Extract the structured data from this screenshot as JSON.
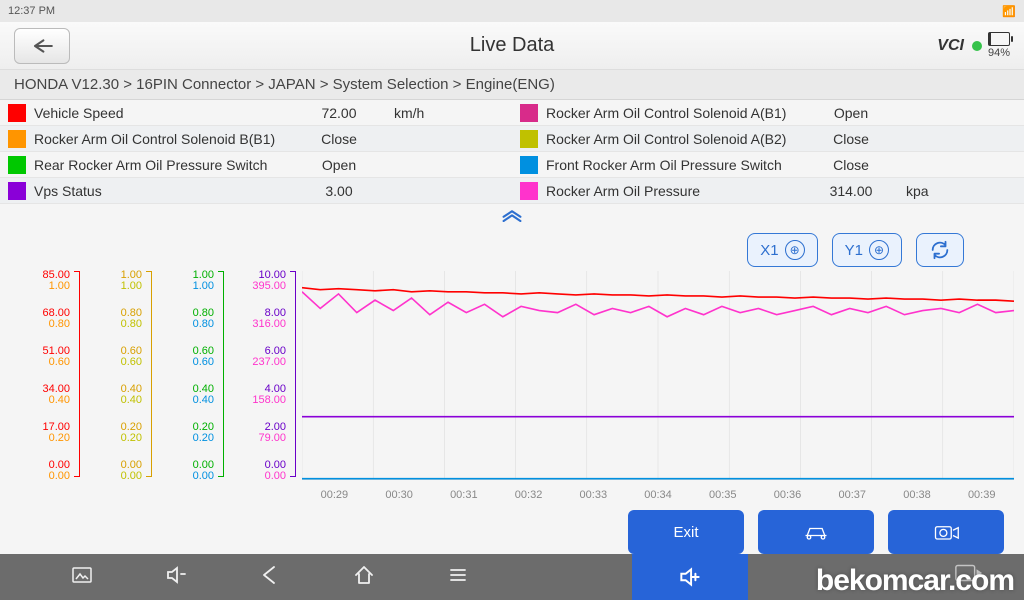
{
  "status": {
    "time": "12:37 PM",
    "battery_pct": "94%"
  },
  "header": {
    "title": "Live Data",
    "vci_label": "VCI"
  },
  "breadcrumb": "HONDA V12.30 > 16PIN Connector  > JAPAN  > System Selection  > Engine(ENG)",
  "params": [
    {
      "color": "#ff0000",
      "name": "Vehicle Speed",
      "value": "72.00",
      "unit": "km/h"
    },
    {
      "color": "#d82b8a",
      "name": "Rocker Arm Oil Control Solenoid A(B1)",
      "value": "Open",
      "unit": ""
    },
    {
      "color": "#ff9500",
      "name": "Rocker Arm Oil Control Solenoid B(B1)",
      "value": "Close",
      "unit": ""
    },
    {
      "color": "#c0c100",
      "name": "Rocker Arm Oil Control Solenoid A(B2)",
      "value": "Close",
      "unit": ""
    },
    {
      "color": "#00c800",
      "name": "Rear Rocker Arm Oil Pressure Switch",
      "value": "Open",
      "unit": ""
    },
    {
      "color": "#0090e0",
      "name": "Front Rocker Arm Oil Pressure Switch",
      "value": "Close",
      "unit": ""
    },
    {
      "color": "#8a00d8",
      "name": "Vps Status",
      "value": "3.00",
      "unit": ""
    },
    {
      "color": "#ff33cc",
      "name": "Rocker Arm Oil Pressure",
      "value": "314.00",
      "unit": "kpa"
    }
  ],
  "controls": {
    "x_label": "X1",
    "y_label": "Y1"
  },
  "chart": {
    "background_color": "#ffffff",
    "grid_color": "#d8d8d8",
    "xticks": [
      "00:29",
      "00:30",
      "00:31",
      "00:32",
      "00:33",
      "00:34",
      "00:35",
      "00:36",
      "00:37",
      "00:38",
      "00:39"
    ],
    "y_height_units": 10,
    "axes": [
      {
        "color": "#ff0000",
        "pairs": [
          [
            "85.00",
            "1.00"
          ],
          [
            "68.00",
            "0.80"
          ],
          [
            "51.00",
            "0.60"
          ],
          [
            "34.00",
            "0.40"
          ],
          [
            "17.00",
            "0.20"
          ],
          [
            "0.00",
            "0.00"
          ]
        ]
      },
      {
        "color": "#d8a000",
        "pairs": [
          [
            "1.00",
            "1.00"
          ],
          [
            "0.80",
            "0.80"
          ],
          [
            "0.60",
            "0.60"
          ],
          [
            "0.40",
            "0.40"
          ],
          [
            "0.20",
            "0.20"
          ],
          [
            "0.00",
            "0.00"
          ]
        ]
      },
      {
        "color": "#00b000",
        "pairs": [
          [
            "1.00",
            "1.00"
          ],
          [
            "0.80",
            "0.80"
          ],
          [
            "0.60",
            "0.60"
          ],
          [
            "0.40",
            "0.40"
          ],
          [
            "0.20",
            "0.20"
          ],
          [
            "0.00",
            "0.00"
          ]
        ]
      },
      {
        "color": "#6a00c8",
        "pairs": [
          [
            "10.00",
            "395.00"
          ],
          [
            "8.00",
            "316.00"
          ],
          [
            "6.00",
            "237.00"
          ],
          [
            "4.00",
            "158.00"
          ],
          [
            "2.00",
            "79.00"
          ],
          [
            "0.00",
            "0.00"
          ]
        ]
      }
    ],
    "axes_secondary_colors": [
      "#ff9500",
      "#c0c100",
      "#0090e0",
      "#ff33cc"
    ],
    "series": [
      {
        "color": "#ff0000",
        "width": 1.5,
        "points": [
          9.2,
          9.1,
          9.15,
          9.1,
          9.05,
          9.1,
          9.0,
          9.05,
          9.0,
          9.0,
          8.95,
          8.95,
          8.9,
          8.95,
          8.9,
          8.85,
          8.9,
          8.85,
          8.85,
          8.8,
          8.85,
          8.8,
          8.8,
          8.75,
          8.8,
          8.75,
          8.75,
          8.7,
          8.75,
          8.7,
          8.7,
          8.65,
          8.7,
          8.65,
          8.65,
          8.6,
          8.65,
          8.6,
          8.6,
          8.55
        ]
      },
      {
        "color": "#ff33cc",
        "width": 1.5,
        "points": [
          9.0,
          8.2,
          8.9,
          8.0,
          8.6,
          8.1,
          8.7,
          7.9,
          8.5,
          8.0,
          8.4,
          7.8,
          8.3,
          8.1,
          8.0,
          8.4,
          7.9,
          8.2,
          8.0,
          8.3,
          7.8,
          8.2,
          7.9,
          8.3,
          8.0,
          8.2,
          7.9,
          8.1,
          8.3,
          7.9,
          8.2,
          8.0,
          8.3,
          7.9,
          8.1,
          8.2,
          8.0,
          8.4,
          8.0,
          8.1
        ]
      },
      {
        "color": "#8a00d8",
        "width": 1.5,
        "points": [
          3.0,
          3.0,
          3.0,
          3.0,
          3.0,
          3.0,
          3.0,
          3.0,
          3.0,
          3.0,
          3.0,
          3.0,
          3.0,
          3.0,
          3.0,
          3.0,
          3.0,
          3.0,
          3.0,
          3.0,
          3.0,
          3.0,
          3.0,
          3.0,
          3.0,
          3.0,
          3.0,
          3.0,
          3.0,
          3.0,
          3.0,
          3.0,
          3.0,
          3.0,
          3.0,
          3.0,
          3.0,
          3.0,
          3.0,
          3.0
        ]
      },
      {
        "color": "#0090e0",
        "width": 1.5,
        "points": [
          0.02,
          0.02,
          0.02,
          0.02,
          0.02,
          0.02,
          0.02,
          0.02,
          0.02,
          0.02,
          0.02,
          0.02,
          0.02,
          0.02,
          0.02,
          0.02,
          0.02,
          0.02,
          0.02,
          0.02,
          0.02,
          0.02,
          0.02,
          0.02,
          0.02,
          0.02,
          0.02,
          0.02,
          0.02,
          0.02,
          0.02,
          0.02,
          0.02,
          0.02,
          0.02,
          0.02,
          0.02,
          0.02,
          0.02,
          0.02
        ]
      }
    ]
  },
  "actions": {
    "exit": "Exit",
    "btn2": "",
    "btn3": ""
  },
  "watermark": "bekomcar.com"
}
